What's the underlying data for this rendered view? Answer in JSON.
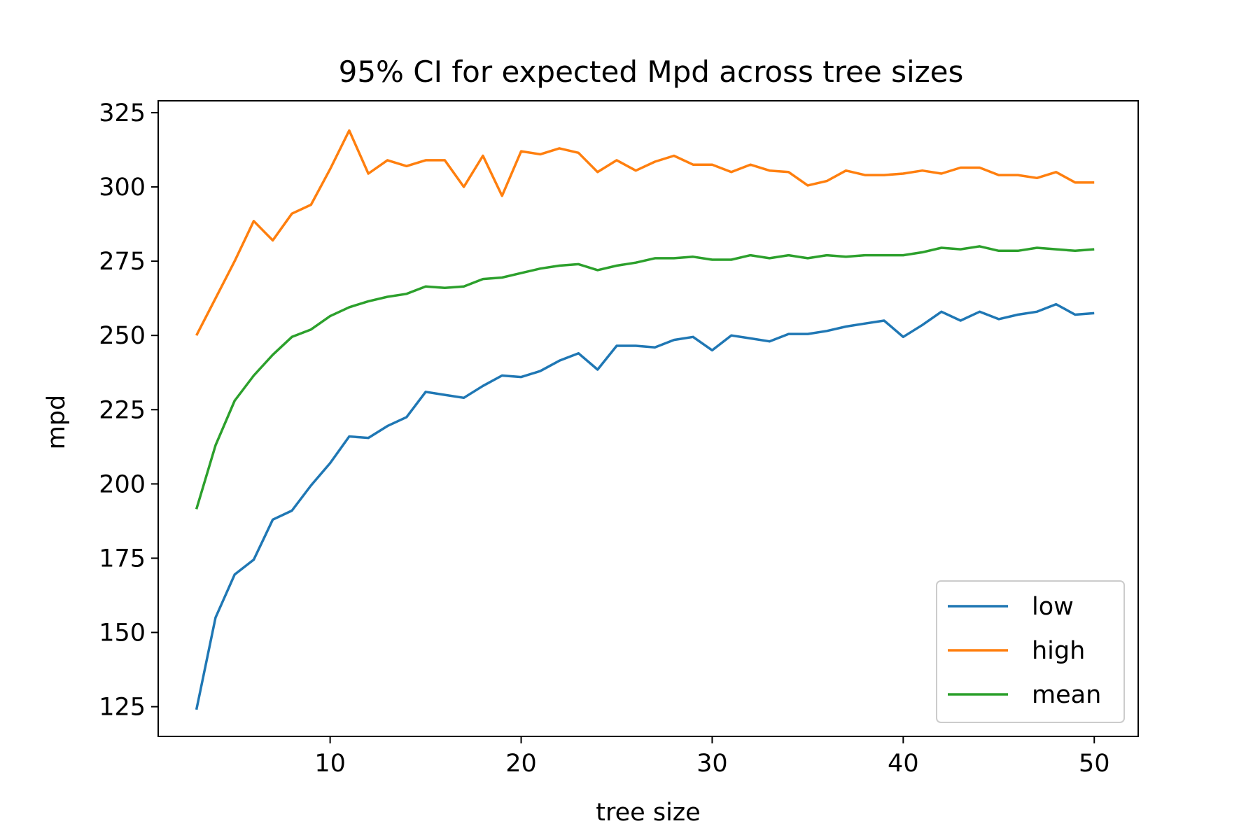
{
  "chart_data": {
    "type": "line",
    "title": "95% CI for expected Mpd across tree sizes",
    "xlabel": "tree size",
    "ylabel": "mpd",
    "xlim": [
      1,
      52.3
    ],
    "ylim": [
      115,
      329
    ],
    "xticks": [
      10,
      20,
      30,
      40,
      50
    ],
    "yticks": [
      125,
      150,
      175,
      200,
      225,
      250,
      275,
      300,
      325
    ],
    "grid": false,
    "legend_position": "lower-right",
    "x": [
      3,
      4,
      5,
      6,
      7,
      8,
      9,
      10,
      11,
      12,
      13,
      14,
      15,
      16,
      17,
      18,
      19,
      20,
      21,
      22,
      23,
      24,
      25,
      26,
      27,
      28,
      29,
      30,
      31,
      32,
      33,
      34,
      35,
      36,
      37,
      38,
      39,
      40,
      41,
      42,
      43,
      44,
      45,
      46,
      47,
      48,
      49,
      50
    ],
    "series": [
      {
        "name": "low",
        "color": "#1f77b4",
        "values": [
          124,
          155,
          169.5,
          174.5,
          188,
          191,
          199.5,
          207,
          216,
          215.5,
          219.5,
          222.5,
          231,
          230,
          229,
          233,
          236.5,
          236,
          238,
          241.5,
          244,
          238.5,
          246.5,
          246.5,
          246,
          248.5,
          249.5,
          245,
          250,
          249,
          248,
          250.5,
          250.5,
          251.5,
          253,
          254,
          255,
          249.5,
          253.5,
          258,
          255,
          258,
          255.5,
          257,
          258,
          260.5,
          257,
          257.5
        ]
      },
      {
        "name": "high",
        "color": "#ff7f0e",
        "values": [
          250,
          262.5,
          275,
          288.5,
          282,
          291,
          294,
          306,
          319,
          304.5,
          309,
          307,
          309,
          309,
          300,
          310.5,
          297,
          312,
          311,
          313,
          311.5,
          305,
          309,
          305.5,
          308.5,
          310.5,
          307.5,
          307.5,
          305,
          307.5,
          305.5,
          305,
          300.5,
          302,
          305.5,
          304,
          304,
          304.5,
          305.5,
          304.5,
          306.5,
          306.5,
          304,
          304,
          303,
          305,
          301.5,
          301.5
        ]
      },
      {
        "name": "mean",
        "color": "#2ca02c",
        "values": [
          191.5,
          213,
          228,
          236.5,
          243.5,
          249.5,
          252,
          256.5,
          259.5,
          261.5,
          263,
          264,
          266.5,
          266,
          266.5,
          269,
          269.5,
          271,
          272.5,
          273.5,
          274,
          272,
          273.5,
          274.5,
          276,
          276,
          276.5,
          275.5,
          275.5,
          277,
          276,
          277,
          276,
          277,
          276.5,
          277,
          277,
          277,
          278,
          279.5,
          279,
          280,
          278.5,
          278.5,
          279.5,
          279,
          278.5,
          279
        ]
      }
    ]
  }
}
